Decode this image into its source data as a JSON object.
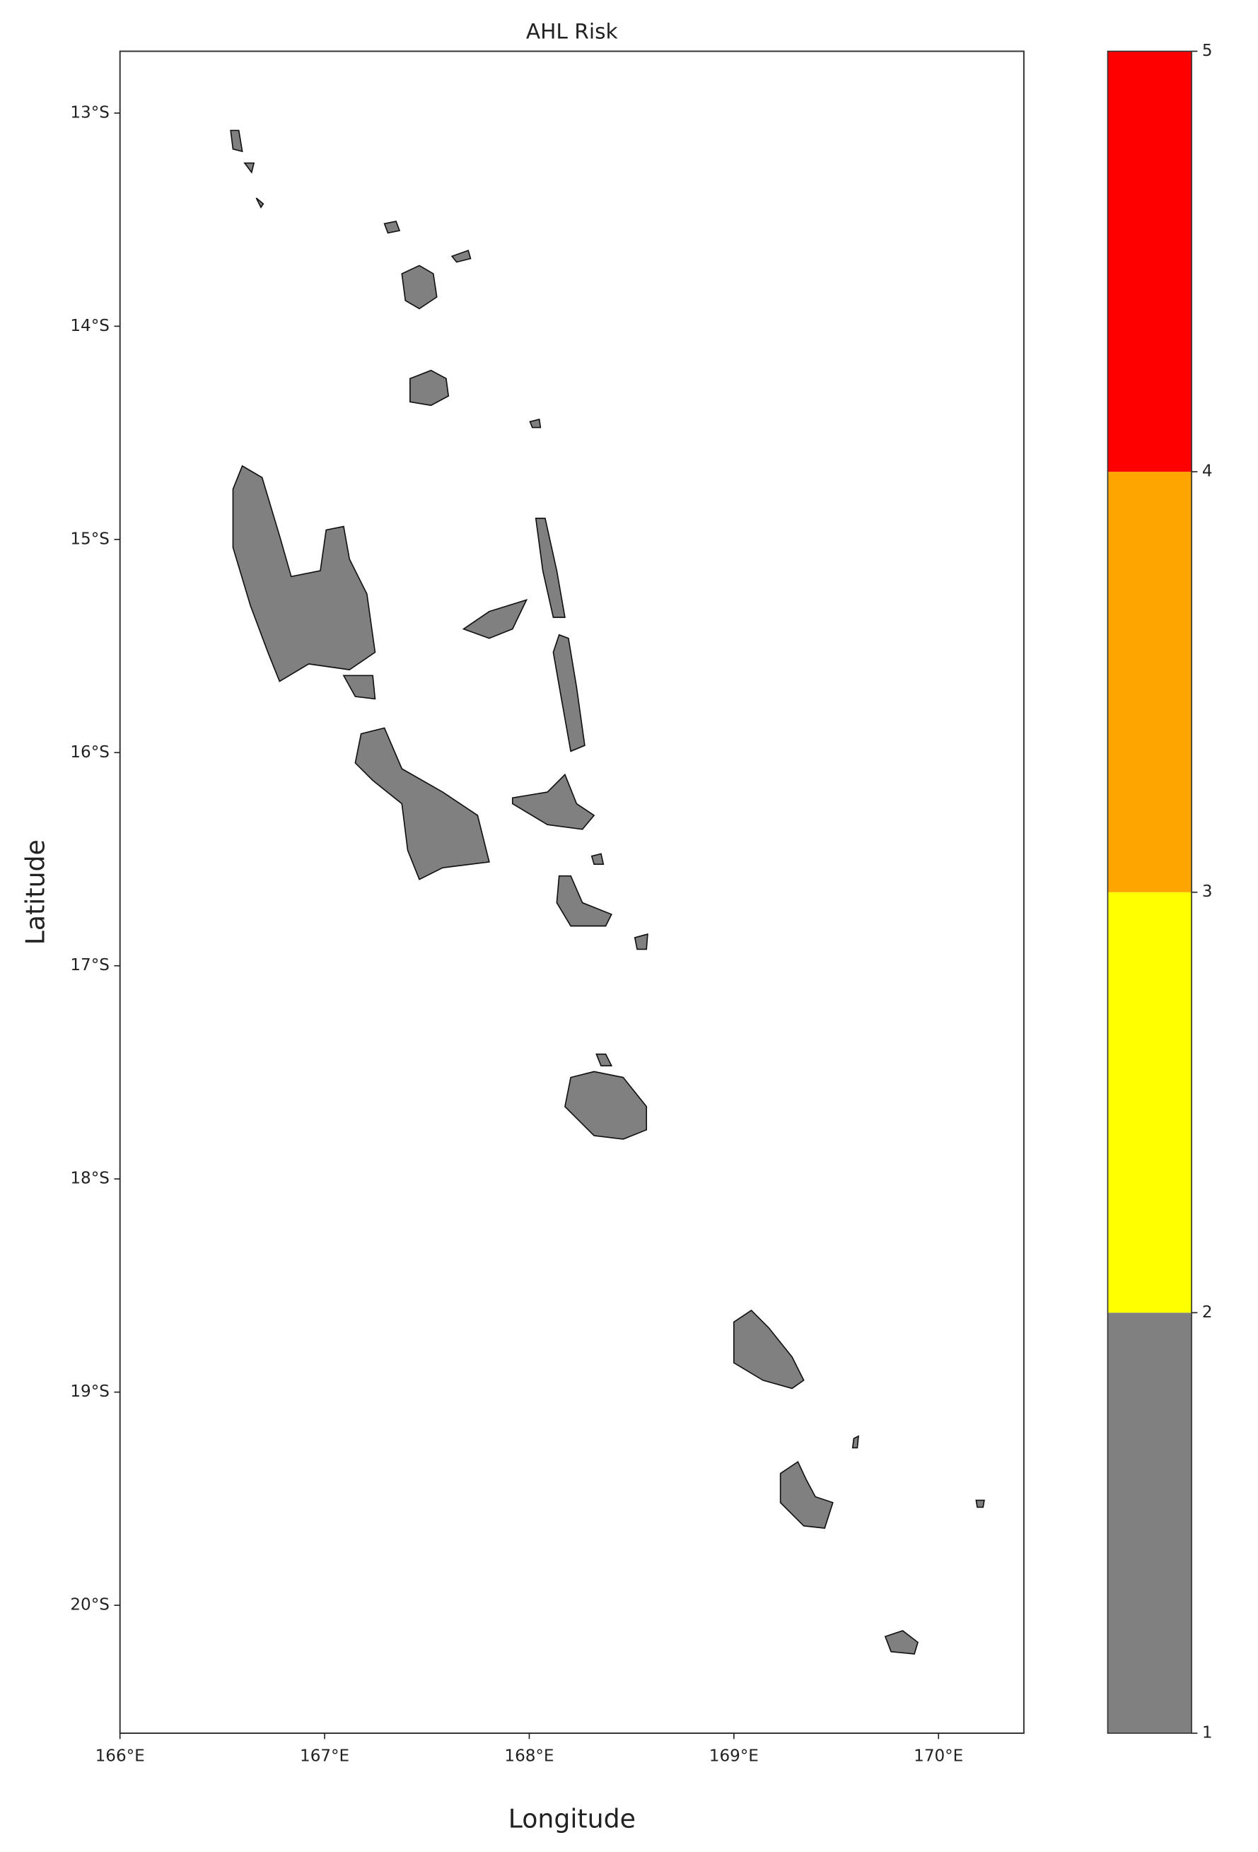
{
  "chart_data": {
    "type": "map",
    "title": "AHL Risk",
    "x_label": "Longitude",
    "y_label": "Latitude",
    "xlim": [
      166,
      170.417
    ],
    "ylim": [
      -20.6,
      -12.71
    ],
    "xticks": [
      {
        "value": 166,
        "label": "166°E"
      },
      {
        "value": 167,
        "label": "167°E"
      },
      {
        "value": 168,
        "label": "168°E"
      },
      {
        "value": 169,
        "label": "169°E"
      },
      {
        "value": 170,
        "label": "170°E"
      }
    ],
    "yticks": [
      {
        "value": -13,
        "label": "13°S"
      },
      {
        "value": -14,
        "label": "14°S"
      },
      {
        "value": -15,
        "label": "15°S"
      },
      {
        "value": -16,
        "label": "16°S"
      },
      {
        "value": -17,
        "label": "17°S"
      },
      {
        "value": -18,
        "label": "18°S"
      },
      {
        "value": -19,
        "label": "19°S"
      },
      {
        "value": -20,
        "label": "20°S"
      }
    ],
    "colorbar": {
      "boundaries": [
        1,
        2,
        3,
        4,
        5
      ],
      "colors": [
        "#808080",
        "#ffff00",
        "#ffa500",
        "#ff0000"
      ],
      "ticks": [
        1,
        2,
        3,
        4,
        5
      ]
    }
  }
}
